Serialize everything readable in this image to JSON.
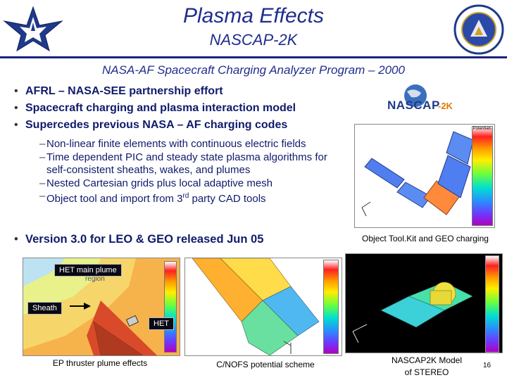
{
  "header": {
    "title": "Plasma Effects",
    "subtitle": "NASCAP-2K"
  },
  "program_title": "NASA-AF Spacecraft Charging Analyzer Program – 2000",
  "bullets": [
    "AFRL – NASA-SEE partnership effort",
    "Spacecraft charging and plasma interaction model",
    "Supercedes previous NASA – AF charging codes"
  ],
  "sub_bullets": [
    "Non-linear finite elements with continuous electric fields",
    "Time dependent PIC and steady state plasma algorithms for self-consistent sheaths, wakes, and plumes",
    "Nested Cartesian grids plus local adaptive mesh"
  ],
  "object_tool": {
    "pre": "Object tool and import from 3",
    "sup": "rd",
    "post": " party CAD tools"
  },
  "bullet_last": "Version 3.0 for LEO & GEO released Jun 05",
  "logo_text": {
    "nascap": "NASCAP",
    "suffix": "-2K"
  },
  "legend_title": "Potentials",
  "images": {
    "geo": {
      "caption": "Object Tool.Kit and GEO charging"
    },
    "ep": {
      "caption": "EP thruster plume effects",
      "label_plume": "HET main plume",
      "label_plume2": "region",
      "label_sheath": "Sheath",
      "label_het": "HET"
    },
    "cnofs": {
      "caption": "C/NOFS potential scheme"
    },
    "stereo": {
      "caption_line1": "NASCAP2K Model",
      "caption_line2": "of  STEREO"
    }
  },
  "page_number": "16",
  "colors": {
    "title": "#1f2d8c",
    "body_text": "#0f1b6b",
    "rule": "#1a237e"
  }
}
